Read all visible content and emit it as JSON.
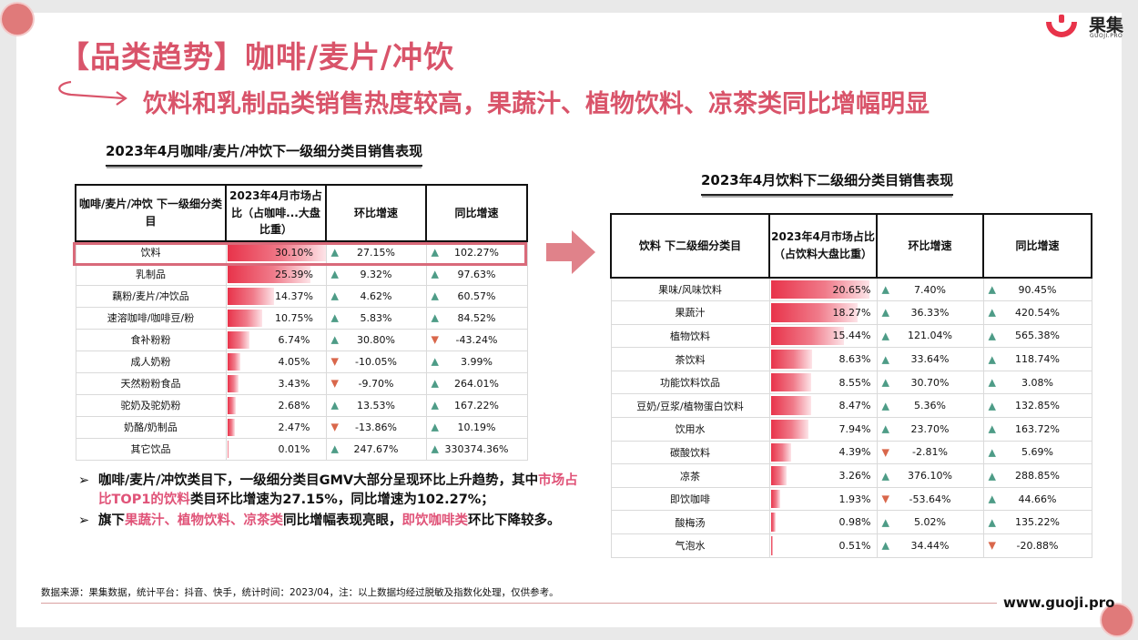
{
  "header": {
    "title": "【品类趋势】咖啡/麦片/冲饮",
    "subtitle": "饮料和乳制品类销售热度较高，果蔬汁、植物饮料、凉茶类同比增幅明显"
  },
  "logo": {
    "name": "果集",
    "sub": "GUOJI.PRO"
  },
  "colors": {
    "accent": "#d9546a",
    "up": "#4e9c87",
    "down": "#d9674b",
    "bar": "#e8334a"
  },
  "table1": {
    "caption": "2023年4月咖啡/麦片/冲饮下一级细分类目销售表现",
    "headers": [
      "咖啡/麦片/冲饮 下一级细分类目",
      "2023年4月市场占比（占咖啡...大盘比重）",
      "环比增速",
      "同比增速"
    ],
    "rows": [
      {
        "name": "饮料",
        "share": "30.10%",
        "share_val": 30.1,
        "mom": "27.15%",
        "mom_dir": "up",
        "yoy": "102.27%",
        "yoy_dir": "up"
      },
      {
        "name": "乳制品",
        "share": "25.39%",
        "share_val": 25.39,
        "mom": "9.32%",
        "mom_dir": "up",
        "yoy": "97.63%",
        "yoy_dir": "up"
      },
      {
        "name": "藕粉/麦片/冲饮品",
        "share": "14.37%",
        "share_val": 14.37,
        "mom": "4.62%",
        "mom_dir": "up",
        "yoy": "60.57%",
        "yoy_dir": "up"
      },
      {
        "name": "速溶咖啡/咖啡豆/粉",
        "share": "10.75%",
        "share_val": 10.75,
        "mom": "5.83%",
        "mom_dir": "up",
        "yoy": "84.52%",
        "yoy_dir": "up"
      },
      {
        "name": "食补粉粉",
        "share": "6.74%",
        "share_val": 6.74,
        "mom": "30.80%",
        "mom_dir": "up",
        "yoy": "-43.24%",
        "yoy_dir": "down"
      },
      {
        "name": "成人奶粉",
        "share": "4.05%",
        "share_val": 4.05,
        "mom": "-10.05%",
        "mom_dir": "down",
        "yoy": "3.99%",
        "yoy_dir": "up"
      },
      {
        "name": "天然粉粉食品",
        "share": "3.43%",
        "share_val": 3.43,
        "mom": "-9.70%",
        "mom_dir": "down",
        "yoy": "264.01%",
        "yoy_dir": "up"
      },
      {
        "name": "驼奶及驼奶粉",
        "share": "2.68%",
        "share_val": 2.68,
        "mom": "13.53%",
        "mom_dir": "up",
        "yoy": "167.22%",
        "yoy_dir": "up"
      },
      {
        "name": "奶酪/奶制品",
        "share": "2.47%",
        "share_val": 2.47,
        "mom": "-13.86%",
        "mom_dir": "down",
        "yoy": "10.19%",
        "yoy_dir": "up"
      },
      {
        "name": "其它饮品",
        "share": "0.01%",
        "share_val": 0.01,
        "mom": "247.67%",
        "mom_dir": "up",
        "yoy": "330374.36%",
        "yoy_dir": "up"
      }
    ]
  },
  "table2": {
    "caption": "2023年4月饮料下二级细分类目销售表现",
    "headers": [
      "饮料 下二级细分类目",
      "2023年4月市场占比（占饮料大盘比重）",
      "环比增速",
      "同比增速"
    ],
    "rows": [
      {
        "name": "果味/风味饮料",
        "share": "20.65%",
        "share_val": 20.65,
        "mom": "7.40%",
        "mom_dir": "up",
        "yoy": "90.45%",
        "yoy_dir": "up"
      },
      {
        "name": "果蔬汁",
        "share": "18.27%",
        "share_val": 18.27,
        "mom": "36.33%",
        "mom_dir": "up",
        "yoy": "420.54%",
        "yoy_dir": "up"
      },
      {
        "name": "植物饮料",
        "share": "15.44%",
        "share_val": 15.44,
        "mom": "121.04%",
        "mom_dir": "up",
        "yoy": "565.38%",
        "yoy_dir": "up"
      },
      {
        "name": "茶饮料",
        "share": "8.63%",
        "share_val": 8.63,
        "mom": "33.64%",
        "mom_dir": "up",
        "yoy": "118.74%",
        "yoy_dir": "up"
      },
      {
        "name": "功能饮料饮品",
        "share": "8.55%",
        "share_val": 8.55,
        "mom": "30.70%",
        "mom_dir": "up",
        "yoy": "3.08%",
        "yoy_dir": "up"
      },
      {
        "name": "豆奶/豆浆/植物蛋白饮料",
        "share": "8.47%",
        "share_val": 8.47,
        "mom": "5.36%",
        "mom_dir": "up",
        "yoy": "132.85%",
        "yoy_dir": "up"
      },
      {
        "name": "饮用水",
        "share": "7.94%",
        "share_val": 7.94,
        "mom": "23.70%",
        "mom_dir": "up",
        "yoy": "163.72%",
        "yoy_dir": "up"
      },
      {
        "name": "碳酸饮料",
        "share": "4.39%",
        "share_val": 4.39,
        "mom": "-2.81%",
        "mom_dir": "down",
        "yoy": "5.69%",
        "yoy_dir": "up"
      },
      {
        "name": "凉茶",
        "share": "3.26%",
        "share_val": 3.26,
        "mom": "376.10%",
        "mom_dir": "up",
        "yoy": "288.85%",
        "yoy_dir": "up"
      },
      {
        "name": "即饮咖啡",
        "share": "1.93%",
        "share_val": 1.93,
        "mom": "-53.64%",
        "mom_dir": "down",
        "yoy": "44.66%",
        "yoy_dir": "up"
      },
      {
        "name": "酸梅汤",
        "share": "0.98%",
        "share_val": 0.98,
        "mom": "5.02%",
        "mom_dir": "up",
        "yoy": "135.22%",
        "yoy_dir": "up"
      },
      {
        "name": "气泡水",
        "share": "0.51%",
        "share_val": 0.51,
        "mom": "34.44%",
        "mom_dir": "up",
        "yoy": "-20.88%",
        "yoy_dir": "down"
      }
    ]
  },
  "bullets": {
    "marker": "➢",
    "b1_p1": "咖啡/麦片/冲饮类目下，一级细分类目GMV大部分呈现环比上升趋势，其中",
    "b1_h1": "市场占比TOP1的饮料",
    "b1_p2": "类目环比增速为27.15%，同比增速为102.27%；",
    "b2_p1": "旗下",
    "b2_h1": "果蔬汁、植物饮料、凉茶类",
    "b2_p2": "同比增幅表现亮眼，",
    "b2_h2": "即饮咖啡类",
    "b2_p3": "环比下降较多。"
  },
  "footer": {
    "source": "数据来源：果集数据，统计平台：抖音、快手，统计时间：2023/04，注：以上数据均经过脱敏及指数化处理，仅供参考。",
    "url": "www.guoji.pro"
  }
}
